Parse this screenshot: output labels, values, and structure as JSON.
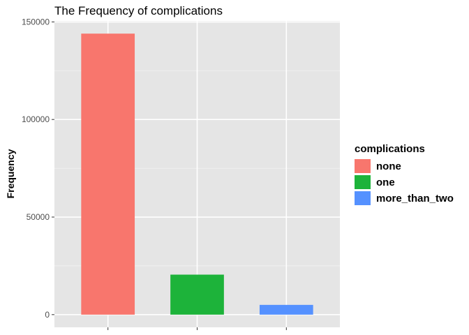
{
  "chart_data": {
    "type": "bar",
    "title": "The Frequency of complications",
    "xlabel": "",
    "ylabel": "Frequency",
    "categories": [
      "none",
      "one",
      "more_than_two"
    ],
    "values": [
      144000,
      20500,
      5000
    ],
    "colors": [
      "#F8766D",
      "#1DB33A",
      "#5591FF"
    ],
    "ylim": [
      -6500,
      150500
    ],
    "yticks": [
      0,
      50000,
      100000,
      150000
    ],
    "ytick_labels": [
      "0",
      "50000",
      "100000",
      "150000"
    ],
    "grid": true,
    "background": "#E5E5E5",
    "legend": {
      "title": "complications",
      "position": "right",
      "entries": [
        "none",
        "one",
        "more_than_two"
      ]
    }
  }
}
